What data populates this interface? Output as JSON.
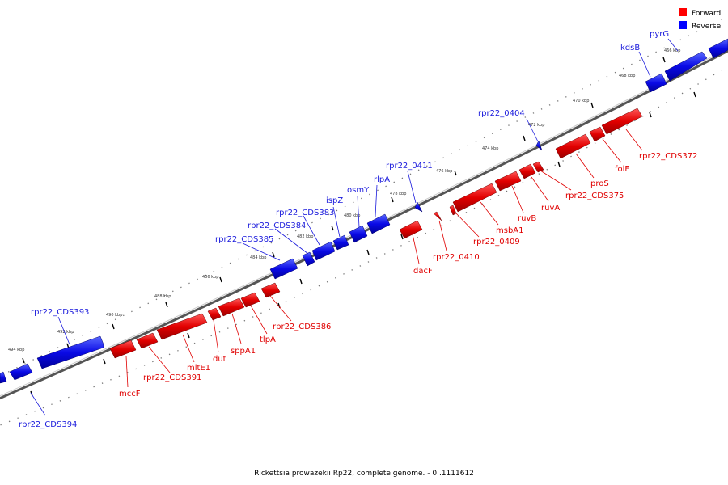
{
  "caption": "Rickettsia prowazekii Rp22, complete genome. - 0..1111612",
  "legend": [
    {
      "label": "Forward",
      "color": "#ff0000"
    },
    {
      "label": "Reverse",
      "color": "#0000ff"
    }
  ],
  "kbp_ticks": [
    "466 kbp",
    "468 kbp",
    "470 kbp",
    "472 kbp",
    "474 kbp",
    "476 kbp",
    "478 kbp",
    "480 kbp",
    "482 kbp",
    "484 kbp",
    "486 kbp",
    "488 kbp",
    "490 kbp",
    "492 kbp",
    "494 kbp"
  ],
  "forward_genes": [
    "rpr22_CDS372",
    "folE",
    "proS",
    "rpr22_CDS375",
    "ruvA",
    "ruvB",
    "msbA1",
    "rpr22_0409",
    "rpr22_0410",
    "dacF",
    "rpr22_CDS386",
    "tlpA",
    "sppA1",
    "dut",
    "mltE1",
    "rpr22_CDS391",
    "mccF"
  ],
  "reverse_genes": [
    "pyrG",
    "kdsB",
    "rpr22_0404",
    "rpr22_0411",
    "rlpA",
    "osmY",
    "ispZ",
    "rpr22_CDS383",
    "rpr22_CDS384",
    "rpr22_CDS385",
    "rpr22_CDS393",
    "rpr22_CDS394"
  ]
}
